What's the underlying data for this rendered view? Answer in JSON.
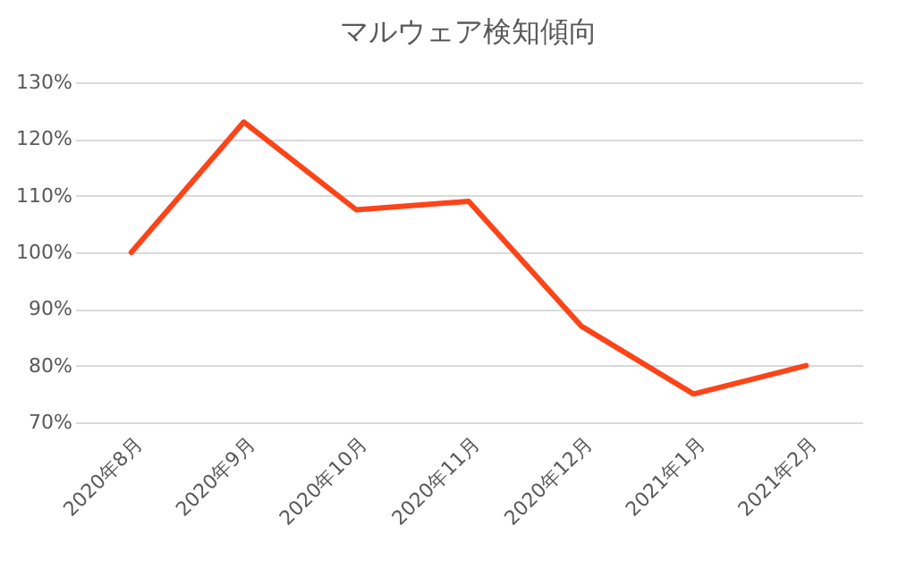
{
  "chart_data": {
    "type": "line",
    "title": "マルウェア検知傾向",
    "categories": [
      "2020年8月",
      "2020年9月",
      "2020年10月",
      "2020年11月",
      "2020年12月",
      "2021年1月",
      "2021年2月"
    ],
    "series": [
      {
        "color": "#fc4419",
        "values": [
          100,
          123,
          107.5,
          109,
          87,
          75,
          80
        ]
      }
    ],
    "ylim": [
      70,
      130
    ],
    "yticks": [
      {
        "value": 70,
        "label": "70%"
      },
      {
        "value": 80,
        "label": "80%"
      },
      {
        "value": 90,
        "label": "90%"
      },
      {
        "value": 100,
        "label": "100%"
      },
      {
        "value": 110,
        "label": "110%"
      },
      {
        "value": 120,
        "label": "120%"
      },
      {
        "value": 130,
        "label": "130%"
      }
    ],
    "grid": "y",
    "marker": "none",
    "line_style": "solid"
  }
}
